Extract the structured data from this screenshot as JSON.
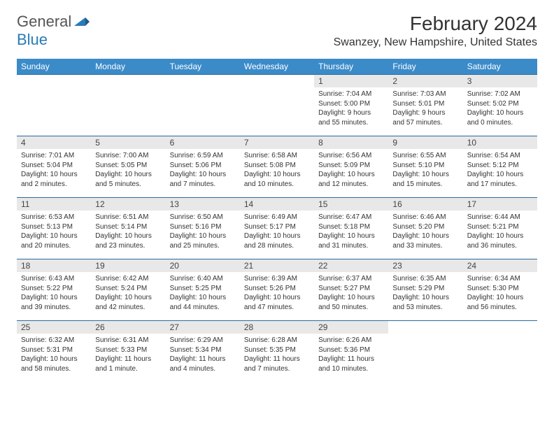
{
  "logo": {
    "general": "General",
    "blue": "Blue"
  },
  "title": "February 2024",
  "location": "Swanzey, New Hampshire, United States",
  "header_bg": "#3b8bc9",
  "day_headers": [
    "Sunday",
    "Monday",
    "Tuesday",
    "Wednesday",
    "Thursday",
    "Friday",
    "Saturday"
  ],
  "weeks": [
    [
      null,
      null,
      null,
      null,
      {
        "n": "1",
        "sr": "Sunrise: 7:04 AM",
        "ss": "Sunset: 5:00 PM",
        "dl1": "Daylight: 9 hours",
        "dl2": "and 55 minutes."
      },
      {
        "n": "2",
        "sr": "Sunrise: 7:03 AM",
        "ss": "Sunset: 5:01 PM",
        "dl1": "Daylight: 9 hours",
        "dl2": "and 57 minutes."
      },
      {
        "n": "3",
        "sr": "Sunrise: 7:02 AM",
        "ss": "Sunset: 5:02 PM",
        "dl1": "Daylight: 10 hours",
        "dl2": "and 0 minutes."
      }
    ],
    [
      {
        "n": "4",
        "sr": "Sunrise: 7:01 AM",
        "ss": "Sunset: 5:04 PM",
        "dl1": "Daylight: 10 hours",
        "dl2": "and 2 minutes."
      },
      {
        "n": "5",
        "sr": "Sunrise: 7:00 AM",
        "ss": "Sunset: 5:05 PM",
        "dl1": "Daylight: 10 hours",
        "dl2": "and 5 minutes."
      },
      {
        "n": "6",
        "sr": "Sunrise: 6:59 AM",
        "ss": "Sunset: 5:06 PM",
        "dl1": "Daylight: 10 hours",
        "dl2": "and 7 minutes."
      },
      {
        "n": "7",
        "sr": "Sunrise: 6:58 AM",
        "ss": "Sunset: 5:08 PM",
        "dl1": "Daylight: 10 hours",
        "dl2": "and 10 minutes."
      },
      {
        "n": "8",
        "sr": "Sunrise: 6:56 AM",
        "ss": "Sunset: 5:09 PM",
        "dl1": "Daylight: 10 hours",
        "dl2": "and 12 minutes."
      },
      {
        "n": "9",
        "sr": "Sunrise: 6:55 AM",
        "ss": "Sunset: 5:10 PM",
        "dl1": "Daylight: 10 hours",
        "dl2": "and 15 minutes."
      },
      {
        "n": "10",
        "sr": "Sunrise: 6:54 AM",
        "ss": "Sunset: 5:12 PM",
        "dl1": "Daylight: 10 hours",
        "dl2": "and 17 minutes."
      }
    ],
    [
      {
        "n": "11",
        "sr": "Sunrise: 6:53 AM",
        "ss": "Sunset: 5:13 PM",
        "dl1": "Daylight: 10 hours",
        "dl2": "and 20 minutes."
      },
      {
        "n": "12",
        "sr": "Sunrise: 6:51 AM",
        "ss": "Sunset: 5:14 PM",
        "dl1": "Daylight: 10 hours",
        "dl2": "and 23 minutes."
      },
      {
        "n": "13",
        "sr": "Sunrise: 6:50 AM",
        "ss": "Sunset: 5:16 PM",
        "dl1": "Daylight: 10 hours",
        "dl2": "and 25 minutes."
      },
      {
        "n": "14",
        "sr": "Sunrise: 6:49 AM",
        "ss": "Sunset: 5:17 PM",
        "dl1": "Daylight: 10 hours",
        "dl2": "and 28 minutes."
      },
      {
        "n": "15",
        "sr": "Sunrise: 6:47 AM",
        "ss": "Sunset: 5:18 PM",
        "dl1": "Daylight: 10 hours",
        "dl2": "and 31 minutes."
      },
      {
        "n": "16",
        "sr": "Sunrise: 6:46 AM",
        "ss": "Sunset: 5:20 PM",
        "dl1": "Daylight: 10 hours",
        "dl2": "and 33 minutes."
      },
      {
        "n": "17",
        "sr": "Sunrise: 6:44 AM",
        "ss": "Sunset: 5:21 PM",
        "dl1": "Daylight: 10 hours",
        "dl2": "and 36 minutes."
      }
    ],
    [
      {
        "n": "18",
        "sr": "Sunrise: 6:43 AM",
        "ss": "Sunset: 5:22 PM",
        "dl1": "Daylight: 10 hours",
        "dl2": "and 39 minutes."
      },
      {
        "n": "19",
        "sr": "Sunrise: 6:42 AM",
        "ss": "Sunset: 5:24 PM",
        "dl1": "Daylight: 10 hours",
        "dl2": "and 42 minutes."
      },
      {
        "n": "20",
        "sr": "Sunrise: 6:40 AM",
        "ss": "Sunset: 5:25 PM",
        "dl1": "Daylight: 10 hours",
        "dl2": "and 44 minutes."
      },
      {
        "n": "21",
        "sr": "Sunrise: 6:39 AM",
        "ss": "Sunset: 5:26 PM",
        "dl1": "Daylight: 10 hours",
        "dl2": "and 47 minutes."
      },
      {
        "n": "22",
        "sr": "Sunrise: 6:37 AM",
        "ss": "Sunset: 5:27 PM",
        "dl1": "Daylight: 10 hours",
        "dl2": "and 50 minutes."
      },
      {
        "n": "23",
        "sr": "Sunrise: 6:35 AM",
        "ss": "Sunset: 5:29 PM",
        "dl1": "Daylight: 10 hours",
        "dl2": "and 53 minutes."
      },
      {
        "n": "24",
        "sr": "Sunrise: 6:34 AM",
        "ss": "Sunset: 5:30 PM",
        "dl1": "Daylight: 10 hours",
        "dl2": "and 56 minutes."
      }
    ],
    [
      {
        "n": "25",
        "sr": "Sunrise: 6:32 AM",
        "ss": "Sunset: 5:31 PM",
        "dl1": "Daylight: 10 hours",
        "dl2": "and 58 minutes."
      },
      {
        "n": "26",
        "sr": "Sunrise: 6:31 AM",
        "ss": "Sunset: 5:33 PM",
        "dl1": "Daylight: 11 hours",
        "dl2": "and 1 minute."
      },
      {
        "n": "27",
        "sr": "Sunrise: 6:29 AM",
        "ss": "Sunset: 5:34 PM",
        "dl1": "Daylight: 11 hours",
        "dl2": "and 4 minutes."
      },
      {
        "n": "28",
        "sr": "Sunrise: 6:28 AM",
        "ss": "Sunset: 5:35 PM",
        "dl1": "Daylight: 11 hours",
        "dl2": "and 7 minutes."
      },
      {
        "n": "29",
        "sr": "Sunrise: 6:26 AM",
        "ss": "Sunset: 5:36 PM",
        "dl1": "Daylight: 11 hours",
        "dl2": "and 10 minutes."
      },
      null,
      null
    ]
  ]
}
